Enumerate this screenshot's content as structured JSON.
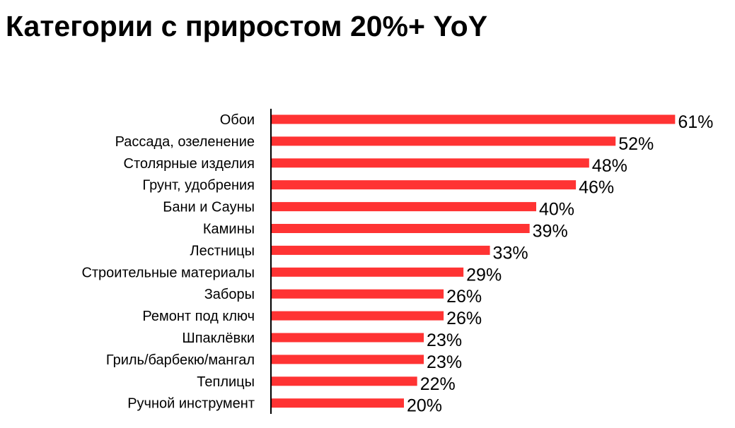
{
  "chart_data": {
    "type": "bar",
    "orientation": "horizontal",
    "title": "Категории с приростом 20%+ YoY",
    "xlabel": "",
    "ylabel": "",
    "categories": [
      "Обои",
      "Рассада, озеленение",
      "Столярные изделия",
      "Грунт, удобрения",
      "Бани и Сауны",
      "Камины",
      "Лестницы",
      "Строительные материалы",
      "Заборы",
      "Ремонт под ключ",
      "Шпаклёвки",
      "Гриль/барбекю/мангал",
      "Теплицы",
      "Ручной инструмент"
    ],
    "values": [
      61,
      52,
      48,
      46,
      40,
      39,
      33,
      29,
      26,
      26,
      23,
      23,
      22,
      20
    ],
    "data_labels": [
      "61%",
      "52%",
      "48%",
      "46%",
      "40%",
      "39%",
      "33%",
      "29%",
      "26%",
      "26%",
      "23%",
      "23%",
      "22%",
      "20%"
    ],
    "unit": "%",
    "grid": false,
    "legend": "none",
    "bar_color": "#ff3333"
  }
}
